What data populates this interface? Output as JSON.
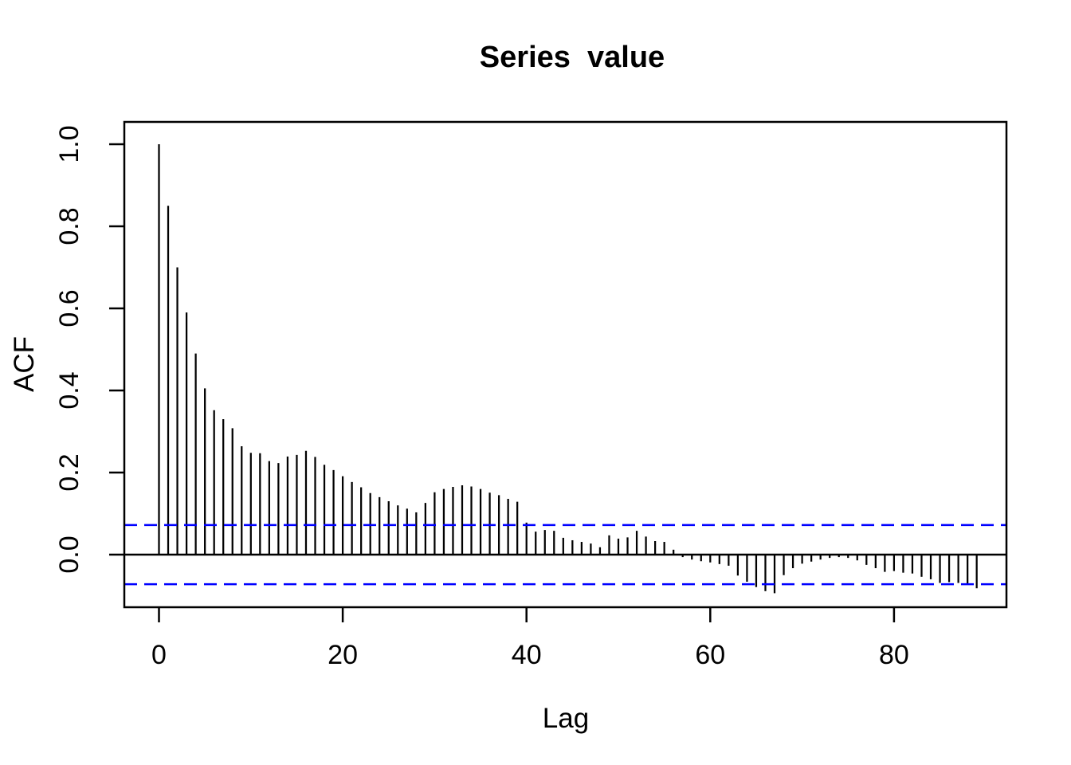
{
  "figure": {
    "title": "Series  value",
    "x_axis_label": "Lag",
    "y_axis_label": "ACF"
  },
  "chart_data": {
    "type": "bar",
    "variant": "acf-correlogram-lollipop",
    "title": "Series  value",
    "xlabel": "Lag",
    "ylabel": "ACF",
    "x": [
      0,
      1,
      2,
      3,
      4,
      5,
      6,
      7,
      8,
      9,
      10,
      11,
      12,
      13,
      14,
      15,
      16,
      17,
      18,
      19,
      20,
      21,
      22,
      23,
      24,
      25,
      26,
      27,
      28,
      29,
      30,
      31,
      32,
      33,
      34,
      35,
      36,
      37,
      38,
      39,
      40,
      41,
      42,
      43,
      44,
      45,
      46,
      47,
      48,
      49,
      50,
      51,
      52,
      53,
      54,
      55,
      56,
      57,
      58,
      59,
      60,
      61,
      62,
      63,
      64,
      65,
      66,
      67,
      68,
      69,
      70,
      71,
      72,
      73,
      74,
      75,
      76,
      77,
      78,
      79,
      80,
      81,
      82,
      83,
      84,
      85,
      86,
      87,
      88,
      89
    ],
    "values": [
      1.0,
      0.85,
      0.7,
      0.59,
      0.49,
      0.405,
      0.352,
      0.33,
      0.308,
      0.264,
      0.248,
      0.247,
      0.228,
      0.223,
      0.239,
      0.243,
      0.253,
      0.238,
      0.219,
      0.206,
      0.191,
      0.177,
      0.164,
      0.15,
      0.14,
      0.13,
      0.12,
      0.112,
      0.103,
      0.126,
      0.152,
      0.16,
      0.165,
      0.169,
      0.166,
      0.16,
      0.151,
      0.145,
      0.136,
      0.129,
      0.078,
      0.056,
      0.06,
      0.058,
      0.041,
      0.035,
      0.031,
      0.027,
      0.018,
      0.047,
      0.039,
      0.042,
      0.058,
      0.044,
      0.033,
      0.031,
      0.012,
      -0.006,
      -0.012,
      -0.016,
      -0.019,
      -0.023,
      -0.027,
      -0.051,
      -0.066,
      -0.079,
      -0.089,
      -0.094,
      -0.05,
      -0.033,
      -0.022,
      -0.017,
      -0.012,
      -0.008,
      -0.006,
      -0.008,
      -0.014,
      -0.025,
      -0.033,
      -0.042,
      -0.04,
      -0.044,
      -0.046,
      -0.054,
      -0.06,
      -0.069,
      -0.067,
      -0.069,
      -0.073,
      -0.082
    ],
    "confidence_interval": {
      "upper": 0.072,
      "lower": -0.072,
      "line_style": "dashed",
      "color": "#0000FF"
    },
    "zero_line": true,
    "x_ticks": [
      0,
      20,
      40,
      60,
      80
    ],
    "x_tick_labels": [
      "0",
      "20",
      "40",
      "60",
      "80"
    ],
    "y_ticks": [
      0.0,
      0.2,
      0.4,
      0.6,
      0.8,
      1.0
    ],
    "y_tick_labels": [
      "0.0",
      "0.2",
      "0.4",
      "0.6",
      "0.8",
      "1.0"
    ],
    "xlim": [
      -3.8,
      92.6
    ],
    "ylim": [
      -0.128,
      1.055
    ],
    "grid": false,
    "legend": null,
    "colors": {
      "bar": "#000000",
      "axis": "#000000",
      "confidence": "#0000FF",
      "background": "#FFFFFF"
    }
  }
}
